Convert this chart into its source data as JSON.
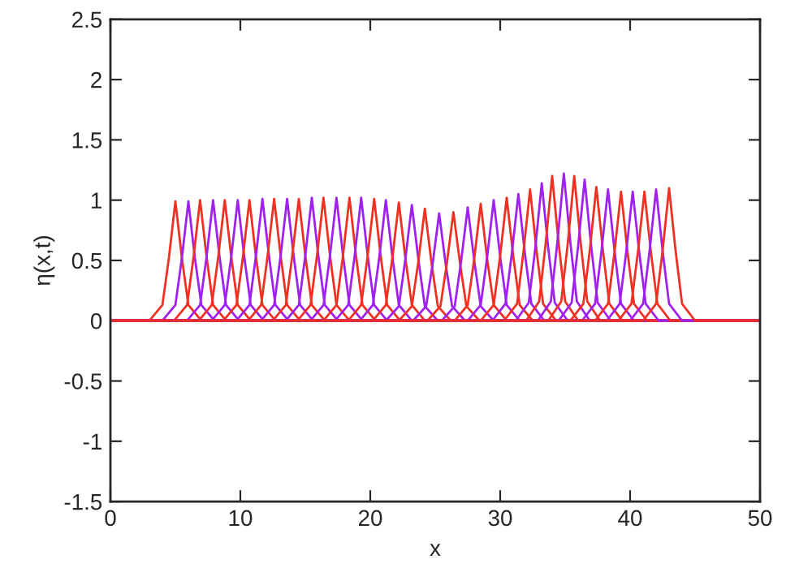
{
  "chart_data": {
    "type": "line",
    "xlabel": "x",
    "ylabel": "η(x,t)",
    "xlim": [
      0,
      50
    ],
    "ylim": [
      -1.5,
      2.5
    ],
    "xticks": [
      0,
      10,
      20,
      30,
      40,
      50
    ],
    "yticks": [
      -1.5,
      -1,
      -0.5,
      0,
      0.5,
      1,
      1.5,
      2,
      2.5
    ],
    "grid": false,
    "marker": "none",
    "line_style": "solid",
    "series": [
      {
        "color": "#f03020",
        "x": [
          0,
          3,
          4,
          4.5,
          5,
          5.5,
          6,
          7,
          50
        ],
        "values": [
          0,
          0,
          0.13,
          0.52,
          0.99,
          0.52,
          0.13,
          0,
          0
        ]
      },
      {
        "color": "#a020f0",
        "x": [
          0,
          4,
          5,
          5.5,
          6,
          6.5,
          7,
          8,
          50
        ],
        "values": [
          0,
          0,
          0.13,
          0.52,
          0.99,
          0.52,
          0.13,
          0,
          0
        ]
      },
      {
        "color": "#f03020",
        "x": [
          0,
          4.9,
          5.9,
          6.4,
          6.9,
          7.4,
          7.9,
          8.9,
          50
        ],
        "values": [
          0,
          0,
          0.13,
          0.53,
          1.0,
          0.53,
          0.13,
          0,
          0
        ]
      },
      {
        "color": "#a020f0",
        "x": [
          0,
          5.9,
          6.9,
          7.4,
          7.9,
          8.4,
          8.9,
          9.9,
          50
        ],
        "values": [
          0,
          0,
          0.13,
          0.53,
          1.0,
          0.53,
          0.13,
          0,
          0
        ]
      },
      {
        "color": "#f03020",
        "x": [
          0,
          6.8,
          7.8,
          8.3,
          8.8,
          9.3,
          9.8,
          10.8,
          50
        ],
        "values": [
          0,
          0,
          0.13,
          0.53,
          1.0,
          0.53,
          0.13,
          0,
          0
        ]
      },
      {
        "color": "#a020f0",
        "x": [
          0,
          7.8,
          8.8,
          9.3,
          9.8,
          10.3,
          10.8,
          11.8,
          50
        ],
        "values": [
          0,
          0,
          0.13,
          0.53,
          1.0,
          0.53,
          0.13,
          0,
          0
        ]
      },
      {
        "color": "#f03020",
        "x": [
          0,
          8.7,
          9.7,
          10.2,
          10.7,
          11.2,
          11.7,
          12.7,
          50
        ],
        "values": [
          0,
          0,
          0.13,
          0.53,
          1.0,
          0.53,
          0.13,
          0,
          0
        ]
      },
      {
        "color": "#a020f0",
        "x": [
          0,
          9.7,
          10.7,
          11.2,
          11.7,
          12.2,
          12.7,
          13.7,
          50
        ],
        "values": [
          0,
          0,
          0.13,
          0.54,
          1.01,
          0.54,
          0.13,
          0,
          0
        ]
      },
      {
        "color": "#f03020",
        "x": [
          0,
          10.6,
          11.6,
          12.1,
          12.6,
          13.1,
          13.6,
          14.6,
          50
        ],
        "values": [
          0,
          0,
          0.13,
          0.54,
          1.01,
          0.54,
          0.13,
          0,
          0
        ]
      },
      {
        "color": "#a020f0",
        "x": [
          0,
          11.6,
          12.6,
          13.1,
          13.6,
          14.1,
          14.6,
          15.6,
          50
        ],
        "values": [
          0,
          0,
          0.13,
          0.54,
          1.01,
          0.54,
          0.13,
          0,
          0
        ]
      },
      {
        "color": "#f03020",
        "x": [
          0,
          12.5,
          13.5,
          14,
          14.5,
          15,
          15.5,
          16.5,
          50
        ],
        "values": [
          0,
          0,
          0.13,
          0.54,
          1.01,
          0.54,
          0.13,
          0,
          0
        ]
      },
      {
        "color": "#a020f0",
        "x": [
          0,
          13.5,
          14.5,
          15,
          15.5,
          16,
          16.5,
          17.5,
          50
        ],
        "values": [
          0,
          0,
          0.13,
          0.54,
          1.02,
          0.54,
          0.13,
          0,
          0
        ]
      },
      {
        "color": "#f03020",
        "x": [
          0,
          14.4,
          15.4,
          15.9,
          16.4,
          16.9,
          17.4,
          18.4,
          50
        ],
        "values": [
          0,
          0,
          0.13,
          0.54,
          1.02,
          0.54,
          0.13,
          0,
          0
        ]
      },
      {
        "color": "#a020f0",
        "x": [
          0,
          15.4,
          16.4,
          16.9,
          17.4,
          17.9,
          18.4,
          19.4,
          50
        ],
        "values": [
          0,
          0,
          0.13,
          0.54,
          1.02,
          0.54,
          0.13,
          0,
          0
        ]
      },
      {
        "color": "#f03020",
        "x": [
          0,
          16.4,
          17.4,
          17.9,
          18.4,
          18.9,
          19.4,
          20.4,
          50
        ],
        "values": [
          0,
          0,
          0.13,
          0.54,
          1.02,
          0.54,
          0.13,
          0,
          0
        ]
      },
      {
        "color": "#a020f0",
        "x": [
          0,
          17.3,
          18.3,
          18.8,
          19.3,
          19.8,
          20.3,
          21.3,
          50
        ],
        "values": [
          0,
          0,
          0.13,
          0.54,
          1.02,
          0.54,
          0.13,
          0,
          0
        ]
      },
      {
        "color": "#f03020",
        "x": [
          0,
          18.3,
          19.3,
          19.8,
          20.3,
          20.8,
          21.3,
          22.3,
          50
        ],
        "values": [
          0,
          0,
          0.13,
          0.54,
          1.01,
          0.54,
          0.13,
          0,
          0
        ]
      },
      {
        "color": "#a020f0",
        "x": [
          0,
          19.2,
          20.2,
          20.7,
          21.2,
          21.7,
          22.2,
          23.2,
          50
        ],
        "values": [
          0,
          0,
          0.13,
          0.53,
          1.0,
          0.53,
          0.13,
          0,
          0
        ]
      },
      {
        "color": "#f03020",
        "x": [
          0,
          20.2,
          21.2,
          21.7,
          22.2,
          22.7,
          23.2,
          24.2,
          50
        ],
        "values": [
          0,
          0,
          0.13,
          0.52,
          0.98,
          0.52,
          0.13,
          0,
          0
        ]
      },
      {
        "color": "#a020f0",
        "x": [
          0,
          21.2,
          22.2,
          22.7,
          23.2,
          23.7,
          24.2,
          25.2,
          50
        ],
        "values": [
          0,
          0,
          0.12,
          0.51,
          0.96,
          0.51,
          0.12,
          0,
          0
        ]
      },
      {
        "color": "#f03020",
        "x": [
          0,
          22.2,
          23.2,
          23.7,
          24.2,
          24.7,
          25.2,
          26.2,
          50
        ],
        "values": [
          0,
          0,
          0.12,
          0.49,
          0.93,
          0.49,
          0.12,
          0,
          0
        ]
      },
      {
        "color": "#a020f0",
        "x": [
          0,
          23.3,
          24.3,
          24.8,
          25.3,
          25.8,
          26.3,
          27.3,
          50
        ],
        "values": [
          0,
          0,
          0.12,
          0.47,
          0.89,
          0.47,
          0.12,
          0,
          0
        ]
      },
      {
        "color": "#f03020",
        "x": [
          0,
          24.4,
          25.4,
          25.9,
          26.4,
          26.9,
          27.4,
          28.4,
          50
        ],
        "values": [
          0,
          0,
          0.12,
          0.48,
          0.9,
          0.48,
          0.12,
          0,
          0
        ]
      },
      {
        "color": "#a020f0",
        "x": [
          0,
          25.5,
          26.5,
          27,
          27.5,
          28,
          28.5,
          29.5,
          50
        ],
        "values": [
          0,
          0,
          0.12,
          0.5,
          0.94,
          0.5,
          0.12,
          0,
          0
        ]
      },
      {
        "color": "#f03020",
        "x": [
          0,
          26.5,
          27.5,
          28,
          28.5,
          29,
          29.5,
          30.5,
          50
        ],
        "values": [
          0,
          0,
          0.13,
          0.51,
          0.97,
          0.51,
          0.13,
          0,
          0
        ]
      },
      {
        "color": "#a020f0",
        "x": [
          0,
          27.5,
          28.5,
          29,
          29.5,
          30,
          30.5,
          31.5,
          50
        ],
        "values": [
          0,
          0,
          0.13,
          0.53,
          1.0,
          0.53,
          0.13,
          0,
          0
        ]
      },
      {
        "color": "#f03020",
        "x": [
          0,
          28.5,
          29.5,
          30,
          30.5,
          31,
          31.5,
          32.5,
          50
        ],
        "values": [
          0,
          0,
          0.13,
          0.54,
          1.02,
          0.54,
          0.13,
          0,
          0
        ]
      },
      {
        "color": "#a020f0",
        "x": [
          0,
          29.4,
          30.4,
          30.9,
          31.4,
          31.9,
          32.4,
          33.4,
          50
        ],
        "values": [
          0,
          0,
          0.14,
          0.56,
          1.05,
          0.56,
          0.14,
          0,
          0
        ]
      },
      {
        "color": "#f03020",
        "x": [
          0,
          30.3,
          31.3,
          31.8,
          32.3,
          32.8,
          33.3,
          34.3,
          50
        ],
        "values": [
          0,
          0,
          0.14,
          0.58,
          1.09,
          0.58,
          0.14,
          0,
          0
        ]
      },
      {
        "color": "#a020f0",
        "x": [
          0,
          31.2,
          32.2,
          32.7,
          33.2,
          33.7,
          34.2,
          35.2,
          50
        ],
        "values": [
          0,
          0,
          0.15,
          0.6,
          1.14,
          0.6,
          0.15,
          0,
          0
        ]
      },
      {
        "color": "#f03020",
        "x": [
          0,
          32,
          33,
          33.5,
          34,
          34.5,
          35,
          36,
          50
        ],
        "values": [
          0,
          0,
          0.16,
          0.64,
          1.2,
          0.64,
          0.16,
          0,
          0
        ]
      },
      {
        "color": "#a020f0",
        "x": [
          0,
          32.9,
          33.9,
          34.4,
          34.9,
          35.4,
          35.9,
          36.9,
          50
        ],
        "values": [
          0,
          0,
          0.16,
          0.65,
          1.22,
          0.65,
          0.16,
          0,
          0
        ]
      },
      {
        "color": "#f03020",
        "x": [
          0,
          33.7,
          34.7,
          35.2,
          35.7,
          36.2,
          36.7,
          37.7,
          50
        ],
        "values": [
          0,
          0,
          0.16,
          0.64,
          1.2,
          0.64,
          0.16,
          0,
          0
        ]
      },
      {
        "color": "#a020f0",
        "x": [
          0,
          34.5,
          35.5,
          36,
          36.5,
          37,
          37.5,
          38.5,
          50
        ],
        "values": [
          0,
          0,
          0.15,
          0.62,
          1.17,
          0.62,
          0.15,
          0,
          0
        ]
      },
      {
        "color": "#f03020",
        "x": [
          0,
          35.4,
          36.4,
          36.9,
          37.4,
          37.9,
          38.4,
          39.4,
          50
        ],
        "values": [
          0,
          0,
          0.14,
          0.59,
          1.11,
          0.59,
          0.14,
          0,
          0
        ]
      },
      {
        "color": "#a020f0",
        "x": [
          0,
          36.3,
          37.3,
          37.8,
          38.3,
          38.8,
          39.3,
          40.3,
          50
        ],
        "values": [
          0,
          0,
          0.14,
          0.58,
          1.09,
          0.58,
          0.14,
          0,
          0
        ]
      },
      {
        "color": "#f03020",
        "x": [
          0,
          37.3,
          38.3,
          38.8,
          39.3,
          39.8,
          40.3,
          41.3,
          50
        ],
        "values": [
          0,
          0,
          0.14,
          0.57,
          1.07,
          0.57,
          0.14,
          0,
          0
        ]
      },
      {
        "color": "#a020f0",
        "x": [
          0,
          38.2,
          39.2,
          39.7,
          40.2,
          40.7,
          41.2,
          42.2,
          50
        ],
        "values": [
          0,
          0,
          0.14,
          0.57,
          1.07,
          0.57,
          0.14,
          0,
          0
        ]
      },
      {
        "color": "#f03020",
        "x": [
          0,
          39.1,
          40.1,
          40.6,
          41.1,
          41.6,
          42.1,
          43.1,
          50
        ],
        "values": [
          0,
          0,
          0.14,
          0.57,
          1.07,
          0.57,
          0.14,
          0,
          0
        ]
      },
      {
        "color": "#a020f0",
        "x": [
          0,
          40,
          41,
          41.5,
          42,
          42.5,
          43,
          44,
          50
        ],
        "values": [
          0,
          0,
          0.14,
          0.58,
          1.09,
          0.58,
          0.14,
          0,
          0
        ]
      },
      {
        "color": "#f03020",
        "x": [
          0,
          41,
          42,
          42.5,
          43,
          43.5,
          44,
          45,
          50
        ],
        "values": [
          0,
          0,
          0.14,
          0.58,
          1.1,
          0.58,
          0.14,
          0,
          0
        ]
      }
    ]
  }
}
